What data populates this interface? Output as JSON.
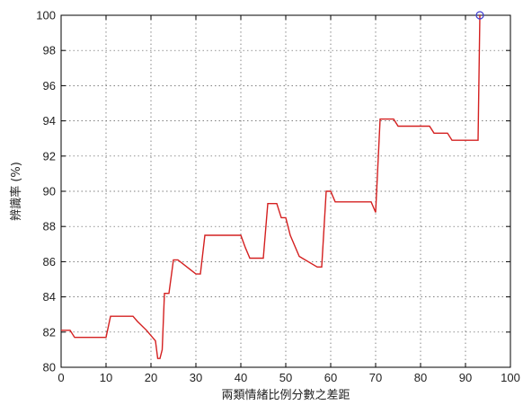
{
  "chart_data": {
    "type": "line",
    "title": "",
    "xlabel": "兩類情緒比例分數之差距",
    "ylabel": "辨識率 (%)",
    "xlim": [
      0,
      100
    ],
    "ylim": [
      80,
      100
    ],
    "xticks": [
      0,
      10,
      20,
      30,
      40,
      50,
      60,
      70,
      80,
      90,
      100
    ],
    "yticks": [
      80,
      82,
      84,
      86,
      88,
      90,
      92,
      94,
      96,
      98,
      100
    ],
    "grid": true,
    "line_color": "#d42020",
    "marker_color": "#3a3ad0",
    "series": [
      {
        "x": [
          0,
          2,
          3,
          10,
          11,
          16,
          17,
          19,
          20,
          21,
          21.5,
          22,
          22.5,
          23,
          24,
          25,
          26,
          29,
          30,
          31,
          32,
          33,
          40,
          41,
          42,
          45,
          46,
          48,
          49,
          50,
          51,
          53,
          57,
          58,
          59,
          60,
          61,
          62,
          69,
          70,
          71,
          74,
          75,
          82,
          83,
          86,
          87,
          92,
          92.8,
          93.2
        ],
        "y": [
          82.1,
          82.1,
          81.7,
          81.7,
          82.9,
          82.9,
          82.6,
          82.1,
          81.8,
          81.5,
          80.5,
          80.5,
          81,
          84.2,
          84.2,
          86.1,
          86.1,
          85.5,
          85.3,
          85.3,
          87.5,
          87.5,
          87.5,
          86.8,
          86.2,
          86.2,
          89.3,
          89.3,
          88.5,
          88.5,
          87.5,
          86.3,
          85.7,
          85.7,
          90,
          90,
          89.4,
          89.4,
          89.4,
          88.8,
          94.1,
          94.1,
          93.7,
          93.7,
          93.3,
          93.3,
          92.9,
          92.9,
          92.9,
          100
        ]
      }
    ],
    "highlight_point": {
      "x": 93.2,
      "y": 100
    }
  }
}
